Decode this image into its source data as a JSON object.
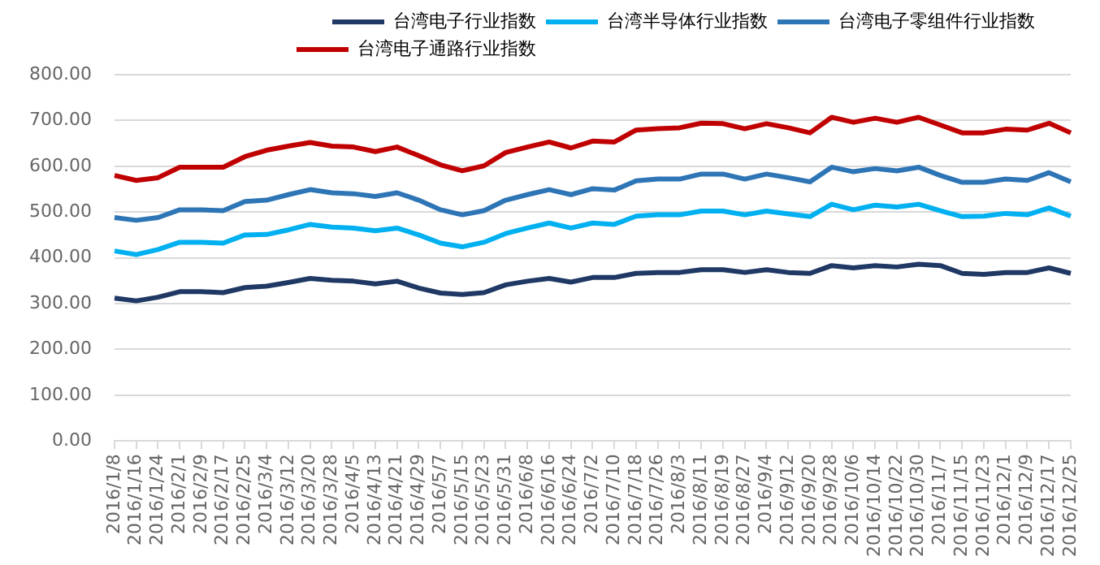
{
  "chart_data": {
    "type": "line",
    "categories": [
      "2016/1/8",
      "2016/1/16",
      "2016/1/24",
      "2016/2/1",
      "2016/2/9",
      "2016/2/17",
      "2016/2/25",
      "2016/3/4",
      "2016/3/12",
      "2016/3/20",
      "2016/3/28",
      "2016/4/5",
      "2016/4/13",
      "2016/4/21",
      "2016/4/29",
      "2016/5/7",
      "2016/5/15",
      "2016/5/23",
      "2016/5/31",
      "2016/6/8",
      "2016/6/16",
      "2016/6/24",
      "2016/7/2",
      "2016/7/10",
      "2016/7/18",
      "2016/7/26",
      "2016/8/3",
      "2016/8/11",
      "2016/8/19",
      "2016/8/27",
      "2016/9/4",
      "2016/9/12",
      "2016/9/20",
      "2016/9/28",
      "2016/10/6",
      "2016/10/14",
      "2016/10/22",
      "2016/10/30",
      "2016/11/7",
      "2016/11/15",
      "2016/11/23",
      "2016/12/1",
      "2016/12/9",
      "2016/12/17",
      "2016/12/25"
    ],
    "series": [
      {
        "name": "台湾电子行业指数",
        "color": "#1f3864",
        "values": [
          312,
          306,
          314,
          326,
          326,
          324,
          335,
          338,
          346,
          355,
          351,
          349,
          343,
          349,
          334,
          323,
          320,
          324,
          341,
          349,
          355,
          347,
          357,
          357,
          366,
          368,
          368,
          374,
          374,
          368,
          374,
          368,
          366,
          383,
          378,
          383,
          380,
          386,
          383,
          366,
          364,
          368,
          368,
          378,
          366
        ]
      },
      {
        "name": "台湾半导体行业指数",
        "color": "#00b0f0",
        "values": [
          415,
          407,
          418,
          434,
          434,
          432,
          450,
          451,
          461,
          473,
          467,
          465,
          459,
          465,
          450,
          432,
          424,
          434,
          453,
          465,
          476,
          465,
          476,
          473,
          491,
          494,
          494,
          502,
          502,
          494,
          502,
          496,
          490,
          517,
          505,
          515,
          511,
          517,
          503,
          490,
          491,
          497,
          494,
          509,
          491
        ]
      },
      {
        "name": "台湾电子零组件行业指数",
        "color": "#2e75b6",
        "values": [
          488,
          482,
          488,
          505,
          505,
          503,
          523,
          526,
          538,
          549,
          542,
          540,
          534,
          542,
          526,
          505,
          494,
          503,
          526,
          538,
          549,
          538,
          551,
          548,
          568,
          572,
          572,
          583,
          583,
          572,
          583,
          575,
          566,
          598,
          588,
          595,
          590,
          598,
          580,
          565,
          565,
          572,
          569,
          586,
          566
        ]
      },
      {
        "name": "台湾电子通路行业指数",
        "color": "#c00000",
        "values": [
          580,
          569,
          575,
          598,
          598,
          598,
          621,
          635,
          644,
          652,
          644,
          642,
          632,
          642,
          623,
          603,
          590,
          601,
          630,
          642,
          653,
          640,
          655,
          653,
          679,
          682,
          684,
          694,
          693,
          682,
          693,
          684,
          673,
          707,
          696,
          705,
          696,
          707,
          690,
          673,
          673,
          681,
          679,
          694,
          673
        ]
      }
    ],
    "ylim": [
      0,
      800
    ],
    "yticks": [
      {
        "value": 0,
        "label": "0.00"
      },
      {
        "value": 100,
        "label": "100.00"
      },
      {
        "value": 200,
        "label": "200.00"
      },
      {
        "value": 300,
        "label": "300.00"
      },
      {
        "value": 400,
        "label": "400.00"
      },
      {
        "value": 500,
        "label": "500.00"
      },
      {
        "value": 600,
        "label": "600.00"
      },
      {
        "value": 700,
        "label": "700.00"
      },
      {
        "value": 800,
        "label": "800.00"
      }
    ],
    "grid": "y",
    "legend": "top",
    "marker": "none",
    "line_style": "solid"
  }
}
